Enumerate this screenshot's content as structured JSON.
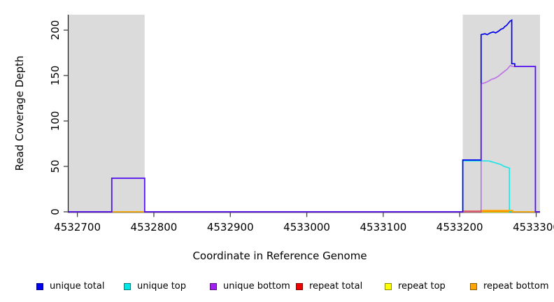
{
  "chart_data": {
    "type": "line",
    "title": "",
    "xlabel": "Coordinate in Reference Genome",
    "ylabel": "Read Coverage Depth",
    "xlim": [
      4532688,
      4533305
    ],
    "ylim": [
      0,
      217
    ],
    "grid": false,
    "x_ticks": [
      4532700,
      4532800,
      4532900,
      4533000,
      4533100,
      4533200,
      4533300
    ],
    "x_tick_labels": [
      "4532700",
      "4532800",
      "4532900",
      "4533000",
      "4533100",
      "4533200",
      "4533300"
    ],
    "y_ticks": [
      0,
      50,
      100,
      150,
      200
    ],
    "y_tick_labels": [
      "0",
      "50",
      "100",
      "150",
      "200"
    ],
    "shaded_regions": {
      "color": "#dbdbdb",
      "ranges": [
        [
          4532688,
          4532788
        ],
        [
          4533204,
          4533305
        ]
      ]
    },
    "series": [
      {
        "name": "unique total",
        "color": "#0000EE",
        "points": [
          [
            4532688,
            0
          ],
          [
            4532745,
            0
          ],
          [
            4532745,
            37
          ],
          [
            4532788,
            37
          ],
          [
            4532788,
            0
          ],
          [
            4533204,
            0
          ],
          [
            4533204,
            57
          ],
          [
            4533228,
            57
          ],
          [
            4533228,
            195
          ],
          [
            4533233,
            196
          ],
          [
            4533236,
            195
          ],
          [
            4533240,
            197
          ],
          [
            4533244,
            198
          ],
          [
            4533247,
            197
          ],
          [
            4533251,
            199
          ],
          [
            4533254,
            201
          ],
          [
            4533257,
            202
          ],
          [
            4533259,
            204
          ],
          [
            4533261,
            205
          ],
          [
            4533263,
            207
          ],
          [
            4533264,
            208
          ],
          [
            4533266,
            210
          ],
          [
            4533268,
            211
          ],
          [
            4533268,
            163
          ],
          [
            4533272,
            163
          ],
          [
            4533272,
            160
          ],
          [
            4533299,
            160
          ],
          [
            4533299,
            0
          ],
          [
            4533305,
            0
          ]
        ]
      },
      {
        "name": "unique top",
        "color": "#00E5E5",
        "points": [
          [
            4532688,
            0
          ],
          [
            4533204,
            0
          ],
          [
            4533204,
            56
          ],
          [
            4533238,
            56
          ],
          [
            4533242,
            55
          ],
          [
            4533246,
            54
          ],
          [
            4533250,
            53
          ],
          [
            4533254,
            52
          ],
          [
            4533258,
            50
          ],
          [
            4533262,
            49
          ],
          [
            4533265,
            48
          ],
          [
            4533265,
            0
          ],
          [
            4533305,
            0
          ]
        ]
      },
      {
        "name": "unique bottom",
        "color": "#A020F0",
        "points": [
          [
            4532688,
            0
          ],
          [
            4532745,
            0
          ],
          [
            4532745,
            37
          ],
          [
            4532788,
            37
          ],
          [
            4532788,
            0
          ],
          [
            4533228,
            0
          ],
          [
            4533228,
            141
          ],
          [
            4533233,
            142
          ],
          [
            4533238,
            144
          ],
          [
            4533242,
            146
          ],
          [
            4533246,
            147
          ],
          [
            4533250,
            149
          ],
          [
            4533253,
            151
          ],
          [
            4533256,
            153
          ],
          [
            4533259,
            155
          ],
          [
            4533262,
            157
          ],
          [
            4533264,
            159
          ],
          [
            4533266,
            161
          ],
          [
            4533270,
            160
          ],
          [
            4533299,
            160
          ],
          [
            4533299,
            0
          ],
          [
            4533305,
            0
          ]
        ]
      },
      {
        "name": "repeat total",
        "color": "#EE0000",
        "points": [
          [
            4532688,
            0
          ],
          [
            4533204,
            0
          ],
          [
            4533204,
            0.5
          ],
          [
            4533228,
            0.5
          ],
          [
            4533228,
            1
          ],
          [
            4533269,
            1
          ],
          [
            4533269,
            0
          ],
          [
            4533305,
            0
          ]
        ]
      },
      {
        "name": "repeat top",
        "color": "#FFFF00",
        "points": [
          [
            4532688,
            0
          ],
          [
            4533305,
            0
          ]
        ]
      },
      {
        "name": "repeat bottom",
        "color": "#FFA500",
        "points": [
          [
            4532688,
            0
          ],
          [
            4533228,
            0
          ],
          [
            4533228,
            1.5
          ],
          [
            4533269,
            1.5
          ],
          [
            4533269,
            0
          ],
          [
            4533305,
            0
          ]
        ]
      }
    ],
    "legend_position": "bottom"
  },
  "legend": {
    "items": [
      {
        "label": "unique total",
        "color": "#0000EE"
      },
      {
        "label": "unique top",
        "color": "#00E5E5"
      },
      {
        "label": "unique bottom",
        "color": "#A020F0"
      },
      {
        "label": "repeat total",
        "color": "#EE0000"
      },
      {
        "label": "repeat top",
        "color": "#FFFF00"
      },
      {
        "label": "repeat bottom",
        "color": "#FFA500"
      }
    ]
  }
}
